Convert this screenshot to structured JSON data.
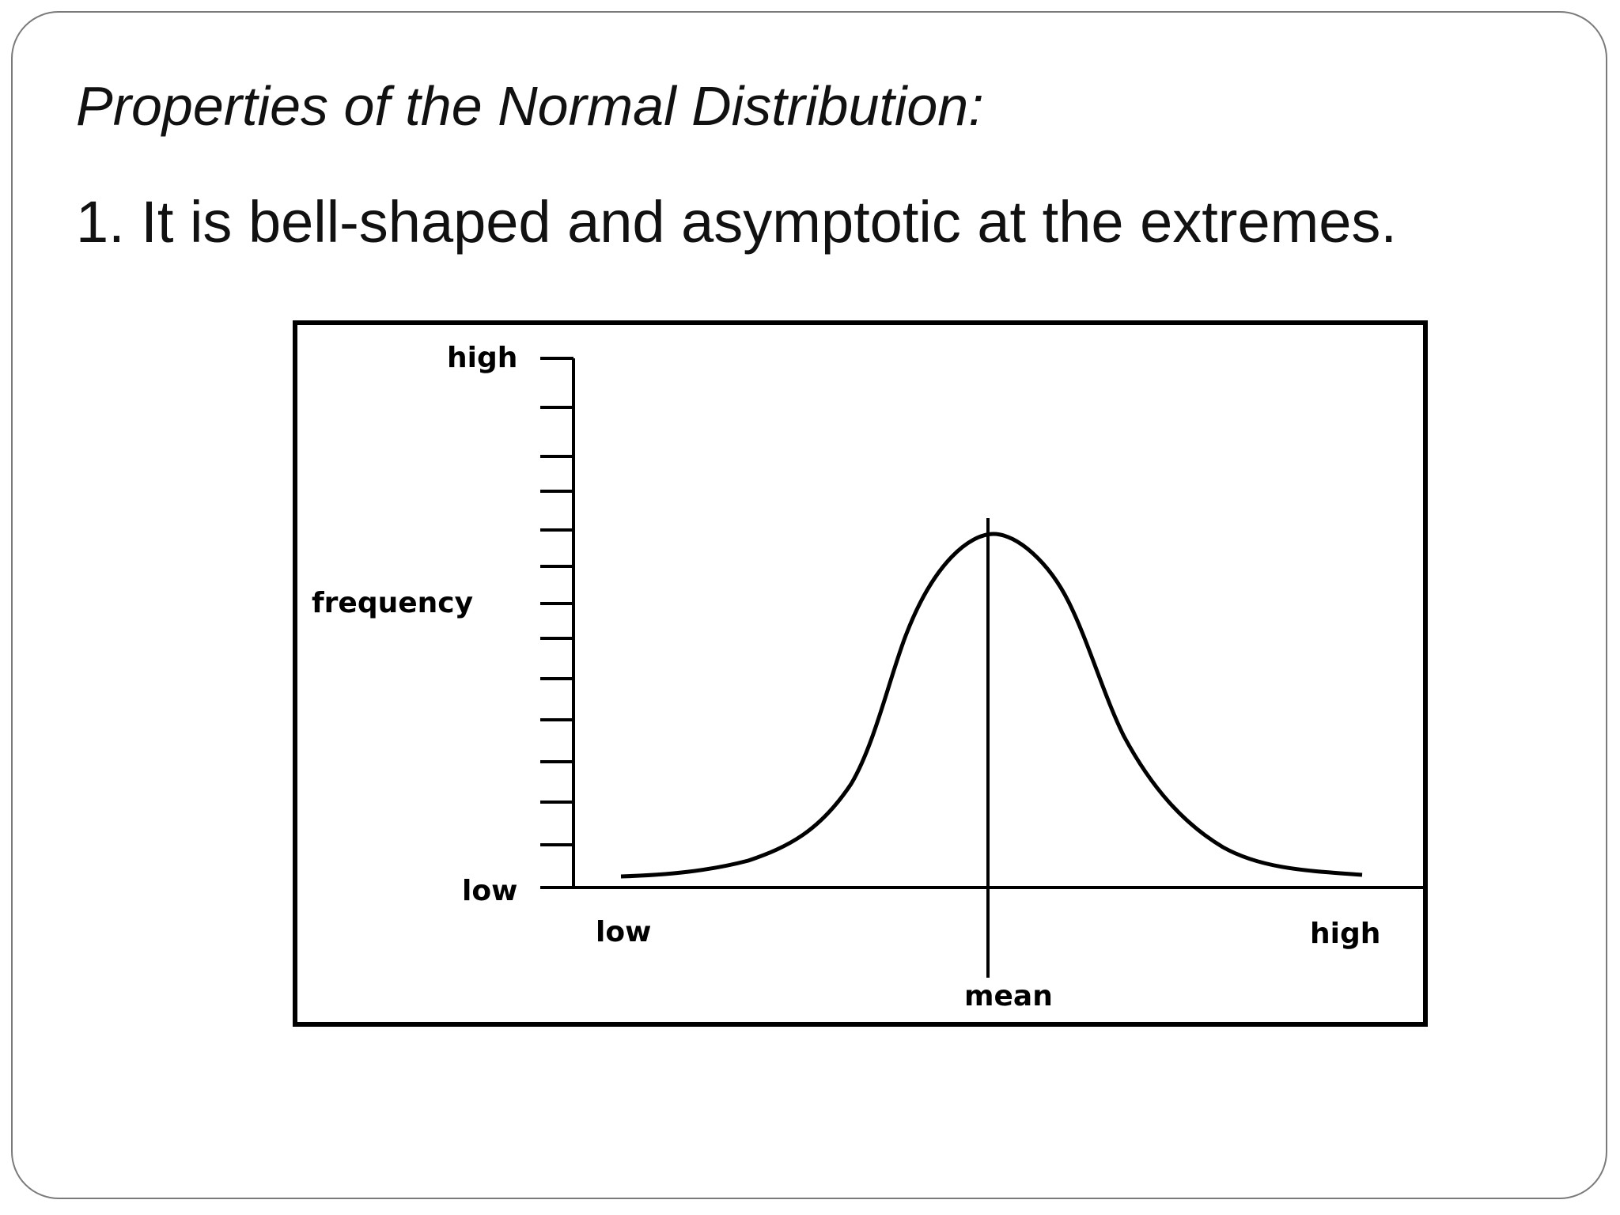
{
  "slide": {
    "title": "Properties of the Normal Distribution:",
    "point": "1. It is bell-shaped and asymptotic at the extremes."
  },
  "diagram": {
    "y_axis_label": "frequency",
    "y_high_label": "high",
    "y_low_label": "low",
    "x_low_label": "low",
    "x_high_label": "high",
    "mean_label": "mean",
    "line_color": "#000000"
  }
}
